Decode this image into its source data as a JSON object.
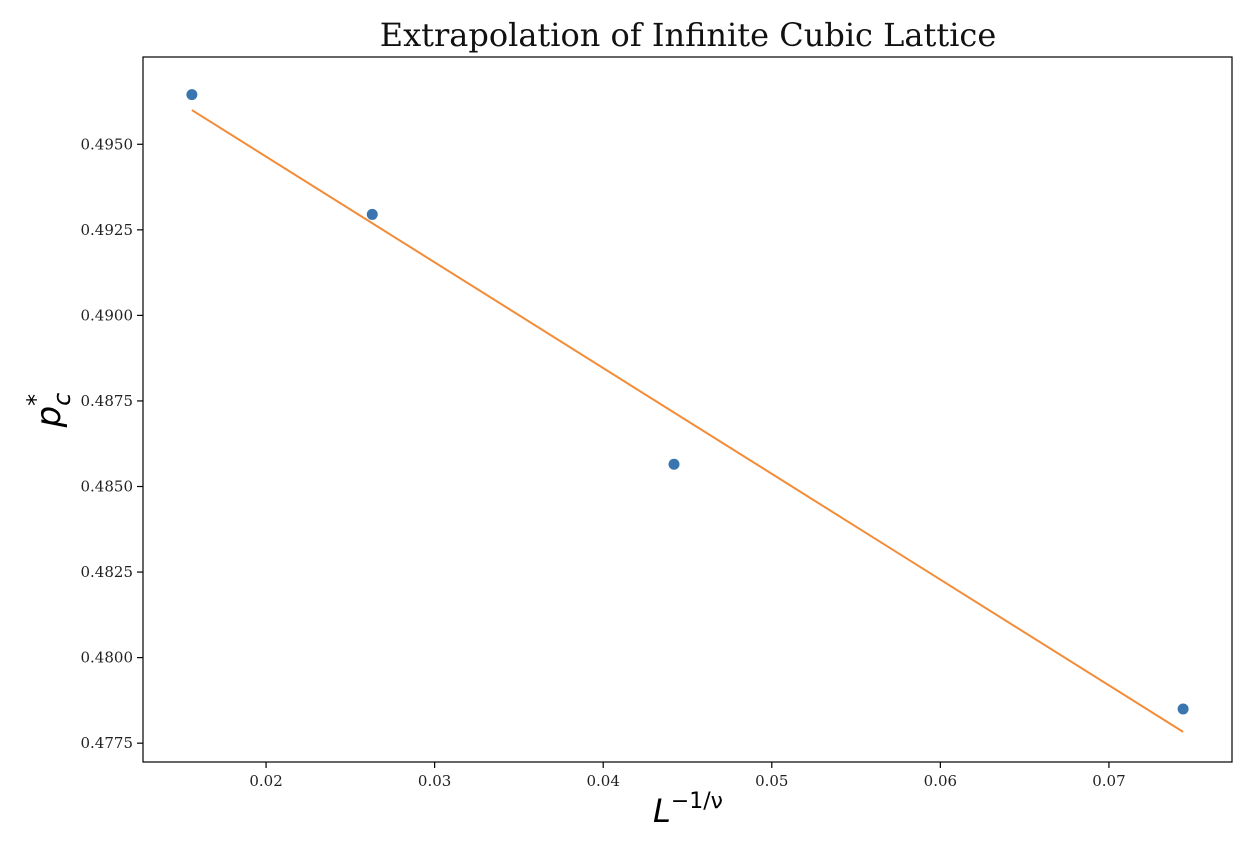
{
  "chart_data": {
    "type": "scatter",
    "title": "Extrapolation of Infinite Cubic Lattice",
    "xlabel": "L^{-1/ν}",
    "ylabel": "p_c^*",
    "xlabel_parts": {
      "base": "L",
      "sup": "−1/ν"
    },
    "ylabel_parts": {
      "base": "p",
      "sup": "*",
      "sub": "c"
    },
    "xlim": [
      0.0127,
      0.0773
    ],
    "ylim": [
      0.47695,
      0.49755
    ],
    "xticks": [
      0.02,
      0.03,
      0.04,
      0.05,
      0.06,
      0.07
    ],
    "xtick_labels": [
      "0.02",
      "0.03",
      "0.04",
      "0.05",
      "0.06",
      "0.07"
    ],
    "yticks": [
      0.4775,
      0.48,
      0.4825,
      0.485,
      0.4875,
      0.49,
      0.4925,
      0.495
    ],
    "ytick_labels": [
      "0.4775",
      "0.4800",
      "0.4825",
      "0.4850",
      "0.4875",
      "0.4900",
      "0.4925",
      "0.4950"
    ],
    "grid": false,
    "series": [
      {
        "kind": "scatter",
        "color": "#3a75b0",
        "x": [
          0.0156,
          0.0263,
          0.0442,
          0.0744
        ],
        "y": [
          0.49645,
          0.49295,
          0.48565,
          0.4785
        ]
      },
      {
        "kind": "line",
        "color": "#f28c38",
        "x": [
          0.0156,
          0.0744
        ],
        "y": [
          0.496,
          0.47783
        ]
      }
    ]
  }
}
